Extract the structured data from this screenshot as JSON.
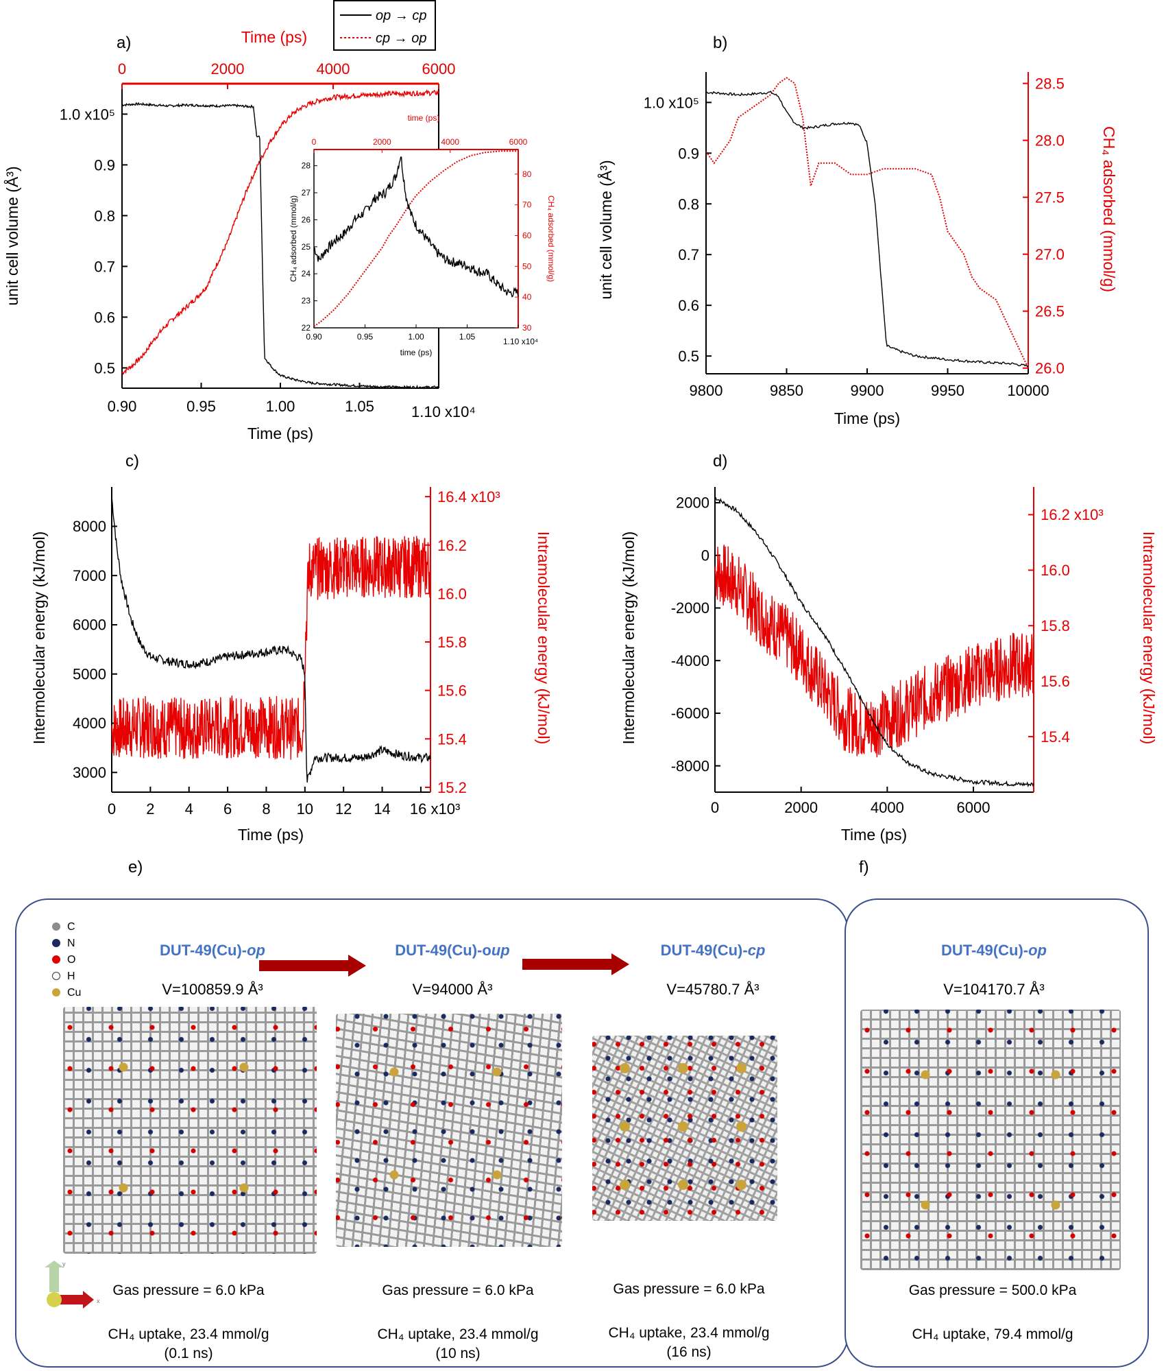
{
  "chart_data": [
    {
      "id": "a",
      "type": "line",
      "panel_label": "a)",
      "xlabel": "Time (ps)",
      "ylabel": "unit cell volume (Å³)",
      "x2label": "Time (ps)",
      "xlim": [
        9000,
        11000
      ],
      "ylim": [
        46000,
        106000
      ],
      "x2lim": [
        0,
        6000
      ],
      "xticks": [
        "0.90",
        "0.95",
        "1.00",
        "1.05",
        "1.10 x10⁴"
      ],
      "x2ticks": [
        "0",
        "2000",
        "4000",
        "6000"
      ],
      "yticks": [
        "0.5",
        "0.6",
        "0.7",
        "0.8",
        "0.9",
        "1.0 x10⁵"
      ],
      "legend": [
        "op → cp",
        "cp → op"
      ],
      "legend_position": "top",
      "series": [
        {
          "name": "op → cp",
          "color": "#000000",
          "axis": "bottom-left",
          "x": [
            9000,
            9100,
            9200,
            9300,
            9400,
            9500,
            9600,
            9700,
            9800,
            9830,
            9840,
            9850,
            9855,
            9860,
            9870,
            9880,
            9900,
            9950,
            10000,
            10100,
            10200,
            10400,
            10600,
            10800,
            11000
          ],
          "y": [
            101800,
            102000,
            101800,
            101600,
            101800,
            101700,
            101600,
            101700,
            101500,
            101500,
            98500,
            95700,
            95200,
            95800,
            95300,
            80000,
            52000,
            50000,
            48500,
            47600,
            47000,
            46600,
            46300,
            46200,
            46200
          ]
        },
        {
          "name": "cp → op",
          "color": "#e60000",
          "axis": "top-left",
          "x": [
            0,
            200,
            400,
            600,
            800,
            1000,
            1200,
            1400,
            1600,
            1800,
            2000,
            2200,
            2400,
            2600,
            2800,
            3000,
            3200,
            3400,
            3600,
            3800,
            4000,
            4500,
            5000,
            5500,
            6000
          ],
          "y": [
            49000,
            50500,
            52500,
            55500,
            58000,
            60000,
            61800,
            63700,
            66000,
            70500,
            74800,
            80500,
            86000,
            90500,
            94500,
            97500,
            99800,
            101300,
            102200,
            102900,
            103300,
            103700,
            104000,
            104100,
            104200
          ]
        }
      ],
      "inset": {
        "xlabel": "time (ps)",
        "ylabel": "CH₄ adsorbed (mmol/g)",
        "y2label": "CH₄ adsorbed (mmol/g)",
        "x2label": "time (ps)",
        "xlim": [
          9000,
          11000
        ],
        "ylim": [
          22,
          28.6
        ],
        "x2lim": [
          0,
          6000
        ],
        "y2lim": [
          30,
          88
        ],
        "xticks": [
          "0.90",
          "0.95",
          "1.00",
          "1.05",
          "1.10 x10⁴"
        ],
        "x2ticks": [
          "0",
          "2000",
          "4000",
          "6000"
        ],
        "yticks": [
          "22",
          "23",
          "24",
          "25",
          "26",
          "27",
          "28"
        ],
        "y2ticks": [
          "30",
          "40",
          "50",
          "60",
          "70",
          "80"
        ],
        "series": [
          {
            "name": "op → cp",
            "color": "#000000",
            "x": [
              9000,
              9050,
              9100,
              9200,
              9300,
              9400,
              9500,
              9600,
              9700,
              9800,
              9850,
              9870,
              9900,
              9950,
              10000,
              10100,
              10200,
              10300,
              10400,
              10500,
              10600,
              10700,
              10800,
              10900,
              11000
            ],
            "y": [
              25.0,
              24.5,
              24.8,
              25.2,
              25.5,
              26.0,
              26.3,
              26.8,
              27.0,
              27.6,
              28.4,
              27.8,
              26.9,
              26.2,
              25.8,
              25.3,
              24.8,
              24.5,
              24.4,
              24.3,
              24.1,
              24.0,
              23.6,
              23.3,
              23.3
            ]
          },
          {
            "name": "cp → op",
            "color": "#e60000",
            "axis": "top-right",
            "x": [
              0,
              200,
              400,
              600,
              800,
              1000,
              1200,
              1400,
              1600,
              1800,
              2000,
              2200,
              2400,
              2600,
              2800,
              3000,
              3400,
              3800,
              4200,
              4600,
              5000,
              5500,
              6000
            ],
            "y": [
              30.5,
              32,
              34,
              36,
              38.5,
              41,
              44,
              47,
              50,
              53,
              56,
              60,
              63,
              66.5,
              70,
              73,
              77.5,
              81,
              84,
              86,
              87,
              87.5,
              87.5
            ]
          }
        ]
      }
    },
    {
      "id": "b",
      "type": "line",
      "panel_label": "b)",
      "xlabel": "Time (ps)",
      "ylabel": "unit cell volume (Å³)",
      "y2label": "CH₄ adsorbed (mmol/g)",
      "xlim": [
        9800,
        10000
      ],
      "ylim": [
        46500,
        106000
      ],
      "y2lim": [
        25.95,
        28.6
      ],
      "xticks": [
        "9800",
        "9850",
        "9900",
        "9950",
        "10000"
      ],
      "yticks": [
        "0.5",
        "0.6",
        "0.7",
        "0.8",
        "0.9",
        "1.0 x10⁵"
      ],
      "y2ticks": [
        "26.0",
        "26.5",
        "27.0",
        "27.5",
        "28.0",
        "28.5"
      ],
      "series": [
        {
          "name": "unit cell volume",
          "color": "#000000",
          "axis": "left",
          "x": [
            9800,
            9810,
            9820,
            9830,
            9840,
            9845,
            9850,
            9855,
            9860,
            9865,
            9870,
            9880,
            9890,
            9895,
            9900,
            9905,
            9910,
            9912,
            9920,
            9930,
            9950,
            9970,
            9990,
            10000
          ],
          "y": [
            102000,
            101800,
            101500,
            101700,
            102000,
            101200,
            98000,
            96000,
            95000,
            95000,
            95300,
            95800,
            96000,
            95500,
            92000,
            80000,
            60000,
            52000,
            51000,
            50000,
            49300,
            48800,
            48500,
            48000
          ]
        },
        {
          "name": "CH₄ adsorbed",
          "color": "#e60000",
          "axis": "right",
          "x": [
            9800,
            9805,
            9810,
            9815,
            9820,
            9830,
            9840,
            9845,
            9850,
            9855,
            9860,
            9865,
            9870,
            9880,
            9890,
            9900,
            9910,
            9920,
            9930,
            9940,
            9945,
            9950,
            9955,
            9960,
            9965,
            9970,
            9980,
            9990,
            10000
          ],
          "y": [
            27.9,
            27.8,
            27.9,
            28.0,
            28.2,
            28.3,
            28.4,
            28.5,
            28.55,
            28.5,
            28.2,
            27.6,
            27.8,
            27.8,
            27.7,
            27.7,
            27.75,
            27.75,
            27.75,
            27.7,
            27.5,
            27.2,
            27.1,
            27.0,
            26.8,
            26.7,
            26.6,
            26.3,
            26.0
          ]
        }
      ]
    },
    {
      "id": "c",
      "type": "line",
      "panel_label": "c)",
      "xlabel": "Time (ps)",
      "ylabel": "Intermolecular energy (kJ/mol)",
      "y2label": "Intramolecular energy (kJ/mol)",
      "xlim": [
        0,
        16500
      ],
      "ylim": [
        2600,
        8800
      ],
      "y2lim": [
        15180,
        16440
      ],
      "xticks": [
        "0",
        "2",
        "4",
        "6",
        "8",
        "10",
        "12",
        "14",
        "16 x10³"
      ],
      "yticks": [
        "3000",
        "4000",
        "5000",
        "6000",
        "7000",
        "8000"
      ],
      "y2ticks": [
        "15.2",
        "15.4",
        "15.6",
        "15.8",
        "16.0",
        "16.2",
        "16.4 x10³"
      ],
      "series": [
        {
          "name": "Intermolecular energy",
          "color": "#000000",
          "axis": "left",
          "x": [
            0,
            250,
            500,
            1000,
            1500,
            2000,
            3000,
            4000,
            5000,
            6000,
            7000,
            8000,
            9000,
            9800,
            10000,
            10100,
            10500,
            11000,
            12000,
            13000,
            14000,
            15000,
            16000,
            16500
          ],
          "y": [
            8600,
            7600,
            6900,
            6100,
            5600,
            5350,
            5250,
            5200,
            5250,
            5350,
            5400,
            5450,
            5500,
            5300,
            5000,
            2800,
            3300,
            3300,
            3300,
            3300,
            3450,
            3350,
            3300,
            3300
          ]
        },
        {
          "name": "Intramolecular energy",
          "color": "#e60000",
          "axis": "right",
          "x": [
            0,
            2000,
            4000,
            6000,
            8000,
            9900,
            10000,
            10200,
            12000,
            14000,
            16000,
            16500
          ],
          "y": [
            15.44,
            15.45,
            15.44,
            15.45,
            15.45,
            15.44,
            15.75,
            16.1,
            16.11,
            16.11,
            16.11,
            16.11
          ]
        }
      ]
    },
    {
      "id": "d",
      "type": "line",
      "panel_label": "d)",
      "xlabel": "Time (ps)",
      "ylabel": "Intermolecular energy (kJ/mol)",
      "y2label": "Intramolecular energy (kJ/mol)",
      "xlim": [
        0,
        7400
      ],
      "ylim": [
        -9000,
        2600
      ],
      "y2lim": [
        15.2,
        16.3
      ],
      "xticks": [
        "0",
        "2000",
        "4000",
        "6000"
      ],
      "yticks": [
        "-8000",
        "-6000",
        "-4000",
        "-2000",
        "0",
        "2000"
      ],
      "y2ticks": [
        "15.4",
        "15.6",
        "15.8",
        "16.0",
        "16.2 x10³"
      ],
      "series": [
        {
          "name": "Intermolecular energy",
          "color": "#000000",
          "axis": "left",
          "x": [
            0,
            200,
            500,
            1000,
            1500,
            2000,
            2500,
            3000,
            3500,
            4000,
            4500,
            5000,
            6000,
            7000,
            7400
          ],
          "y": [
            2200,
            2000,
            1700,
            800,
            -400,
            -1800,
            -2900,
            -4300,
            -5800,
            -7200,
            -7900,
            -8300,
            -8600,
            -8700,
            -8700
          ]
        },
        {
          "name": "Intramolecular energy",
          "color": "#e60000",
          "axis": "right",
          "x": [
            0,
            500,
            1000,
            1500,
            2000,
            2500,
            3000,
            3500,
            4000,
            4500,
            5000,
            5500,
            6000,
            6500,
            7000,
            7400
          ],
          "y": [
            16.0,
            15.95,
            15.85,
            15.78,
            15.7,
            15.58,
            15.47,
            15.43,
            15.46,
            15.5,
            15.55,
            15.58,
            15.62,
            15.64,
            15.66,
            15.66
          ]
        }
      ]
    }
  ],
  "panel_e_label": "e)",
  "panel_f_label": "f)",
  "legend_elements": [
    {
      "symbol": "C",
      "color": "#8c8c8c"
    },
    {
      "symbol": "N",
      "color": "#1b2a5e"
    },
    {
      "symbol": "O",
      "color": "#e00000"
    },
    {
      "symbol": "H",
      "color": "#ffffff"
    },
    {
      "symbol": "Cu",
      "color": "#c9a43a"
    }
  ],
  "structures": [
    {
      "name_base": "DUT-49(Cu)-",
      "name_suffix": "op",
      "volume": "V=100859.9 Å³",
      "pressure": "Gas pressure = 6.0 kPa",
      "uptake": "CH₄ uptake, 23.4 mmol/g",
      "time": "(0.1 ns)"
    },
    {
      "name_base": "DUT-49(Cu)-o",
      "name_suffix": "up",
      "volume": "V=94000 Å³",
      "pressure": "Gas pressure = 6.0 kPa",
      "uptake": "CH₄ uptake, 23.4 mmol/g",
      "time": "(10 ns)"
    },
    {
      "name_base": "DUT-49(Cu)-",
      "name_suffix": "cp",
      "volume": "V=45780.7 Å³",
      "pressure": "Gas pressure = 6.0 kPa",
      "uptake": "CH₄ uptake, 23.4 mmol/g",
      "time": "(16 ns)"
    },
    {
      "name_base": "DUT-49(Cu)-",
      "name_suffix": "op",
      "volume": "V=104170.7 Å³",
      "pressure": "Gas pressure = 500.0 kPa",
      "uptake": "CH₄ uptake, 79.4 mmol/g",
      "time": ""
    }
  ],
  "axis_triad": {
    "y": "y",
    "x": "x"
  },
  "colors": {
    "black_series": "#000000",
    "red_series": "#e60000",
    "arrow": "#a60000",
    "frame": "#3a4f8c",
    "title_blue": "#4472c4"
  }
}
